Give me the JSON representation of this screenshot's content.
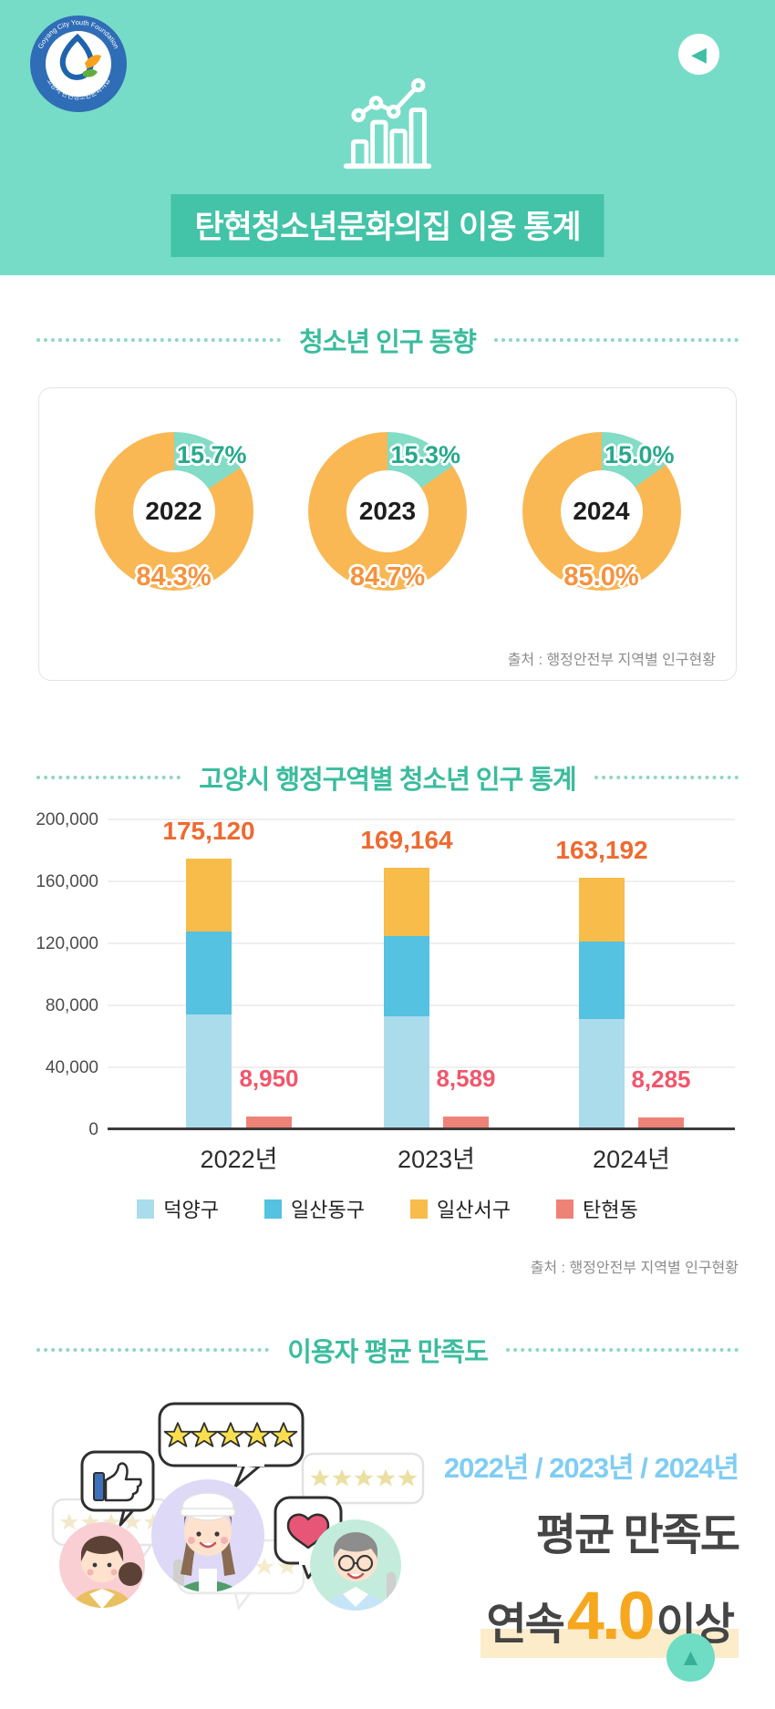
{
  "colors": {
    "header_bg": "#77dcc7",
    "badge_bg": "#43c3a7",
    "section_title": "#3bbc9e",
    "donut_youth": "#82dcc6",
    "donut_other": "#f9b854",
    "total_label": "#ee6a30",
    "tanhyeon_label": "#f1566b",
    "score_orange": "#f6a71e",
    "years_blue": "#7fcdf3"
  },
  "header": {
    "logo_top_text": "Goyang City Youth Foundation",
    "logo_bottom_text": "고양시 탄현청소년문화의집",
    "title": "탄현청소년문화의집 이용 통계"
  },
  "icons": {
    "back": "◀",
    "scroll_top": "▲"
  },
  "population_section": {
    "title": "청소년 인구 동향",
    "source": "출처 : 행정안전부 지역별 인구현황"
  },
  "district_section": {
    "title": "고양시 행정구역별 청소년 인구 통계",
    "source": "출처 : 행정안전부 지역별 인구현황"
  },
  "satisfaction_section": {
    "title": "이용자 평균 만족도",
    "years_line": "2022년 / 2023년 / 2024년",
    "avg_label": "평균 만족도",
    "score_prefix": "연속",
    "score": "4.0",
    "score_suffix": "이상",
    "star_count": 5
  },
  "chart_data": [
    {
      "type": "pie",
      "subtype": "donut-set",
      "title": "청소년 인구 동향",
      "unit": "%",
      "donuts": [
        {
          "center_label": "2022",
          "slices": [
            {
              "label": "15.7%",
              "value": 15.7,
              "color": "#82dcc6"
            },
            {
              "label": "84.3%",
              "value": 84.3,
              "color": "#f9b854"
            }
          ]
        },
        {
          "center_label": "2023",
          "slices": [
            {
              "label": "15.3%",
              "value": 15.3,
              "color": "#82dcc6"
            },
            {
              "label": "84.7%",
              "value": 84.7,
              "color": "#f9b854"
            }
          ]
        },
        {
          "center_label": "2024",
          "slices": [
            {
              "label": "15.0%",
              "value": 15.0,
              "color": "#82dcc6"
            },
            {
              "label": "85.0%",
              "value": 85.0,
              "color": "#f9b854"
            }
          ]
        }
      ]
    },
    {
      "type": "bar",
      "subtype": "stacked-plus-side",
      "title": "고양시 행정구역별 청소년 인구 통계",
      "categories": [
        "2022년",
        "2023년",
        "2024년"
      ],
      "ylim": [
        0,
        200000
      ],
      "y_ticks": [
        200000,
        160000,
        120000,
        80000,
        40000,
        0
      ],
      "y_tick_labels": [
        "200,000",
        "160,000",
        "120,000",
        "80,000",
        "40,000",
        "0"
      ],
      "stacked_series": [
        {
          "name": "덕양구",
          "color": "#abdcec",
          "values": [
            75000,
            73500,
            71500
          ]
        },
        {
          "name": "일산동구",
          "color": "#54c2e0",
          "values": [
            53000,
            52000,
            50000
          ]
        },
        {
          "name": "일산서구",
          "color": "#f7bc4a",
          "values": [
            47120,
            43664,
            41692
          ]
        }
      ],
      "stacked_totals": [
        175120,
        169164,
        163192
      ],
      "stacked_total_labels": [
        "175,120",
        "169,164",
        "163,192"
      ],
      "side_series": {
        "name": "탄현동",
        "color": "#ef8276",
        "values": [
          8950,
          8589,
          8285
        ],
        "labels": [
          "8,950",
          "8,589",
          "8,285"
        ]
      },
      "legend": [
        {
          "name": "덕양구",
          "color": "#abdcec"
        },
        {
          "name": "일산동구",
          "color": "#54c2e0"
        },
        {
          "name": "일산서구",
          "color": "#f7bc4a"
        },
        {
          "name": "탄현동",
          "color": "#ef8276"
        }
      ],
      "legend_position": "bottom-center",
      "grid": true
    }
  ]
}
